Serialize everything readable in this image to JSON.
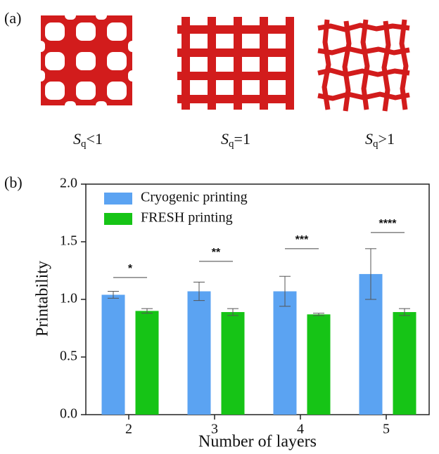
{
  "panel_a": {
    "label": "(a)",
    "captions": [
      {
        "base": "S",
        "sub": "q",
        "rest": "<1"
      },
      {
        "base": "S",
        "sub": "q",
        "rest": "=1"
      },
      {
        "base": "S",
        "sub": "q",
        "rest": ">1"
      }
    ]
  },
  "chart_data": {
    "type": "bar",
    "panel_label": "(b)",
    "ylabel": "Printability",
    "xlabel": "Number of layers",
    "categories": [
      "2",
      "3",
      "4",
      "5"
    ],
    "series": [
      {
        "name": "Cryogenic printing",
        "color": "#5ba3f2",
        "values": [
          1.04,
          1.07,
          1.07,
          1.22
        ],
        "errors": [
          0.03,
          0.08,
          0.13,
          0.22
        ]
      },
      {
        "name": "FRESH printing",
        "color": "#16c416",
        "values": [
          0.9,
          0.89,
          0.87,
          0.89
        ],
        "errors": [
          0.02,
          0.03,
          0.01,
          0.03
        ]
      }
    ],
    "annotations": [
      {
        "text": "*",
        "y": 1.19
      },
      {
        "text": "**",
        "y": 1.33
      },
      {
        "text": "***",
        "y": 1.44
      },
      {
        "text": "****",
        "y": 1.58
      }
    ],
    "ylim": [
      0,
      2
    ],
    "yticks": [
      {
        "value": 0,
        "label": "0.0"
      },
      {
        "value": 0.5,
        "label": "0.5"
      },
      {
        "value": 1,
        "label": "1.0"
      },
      {
        "value": 1.5,
        "label": "1.5"
      },
      {
        "value": 2,
        "label": "2.0"
      }
    ],
    "legend": "upper left"
  }
}
